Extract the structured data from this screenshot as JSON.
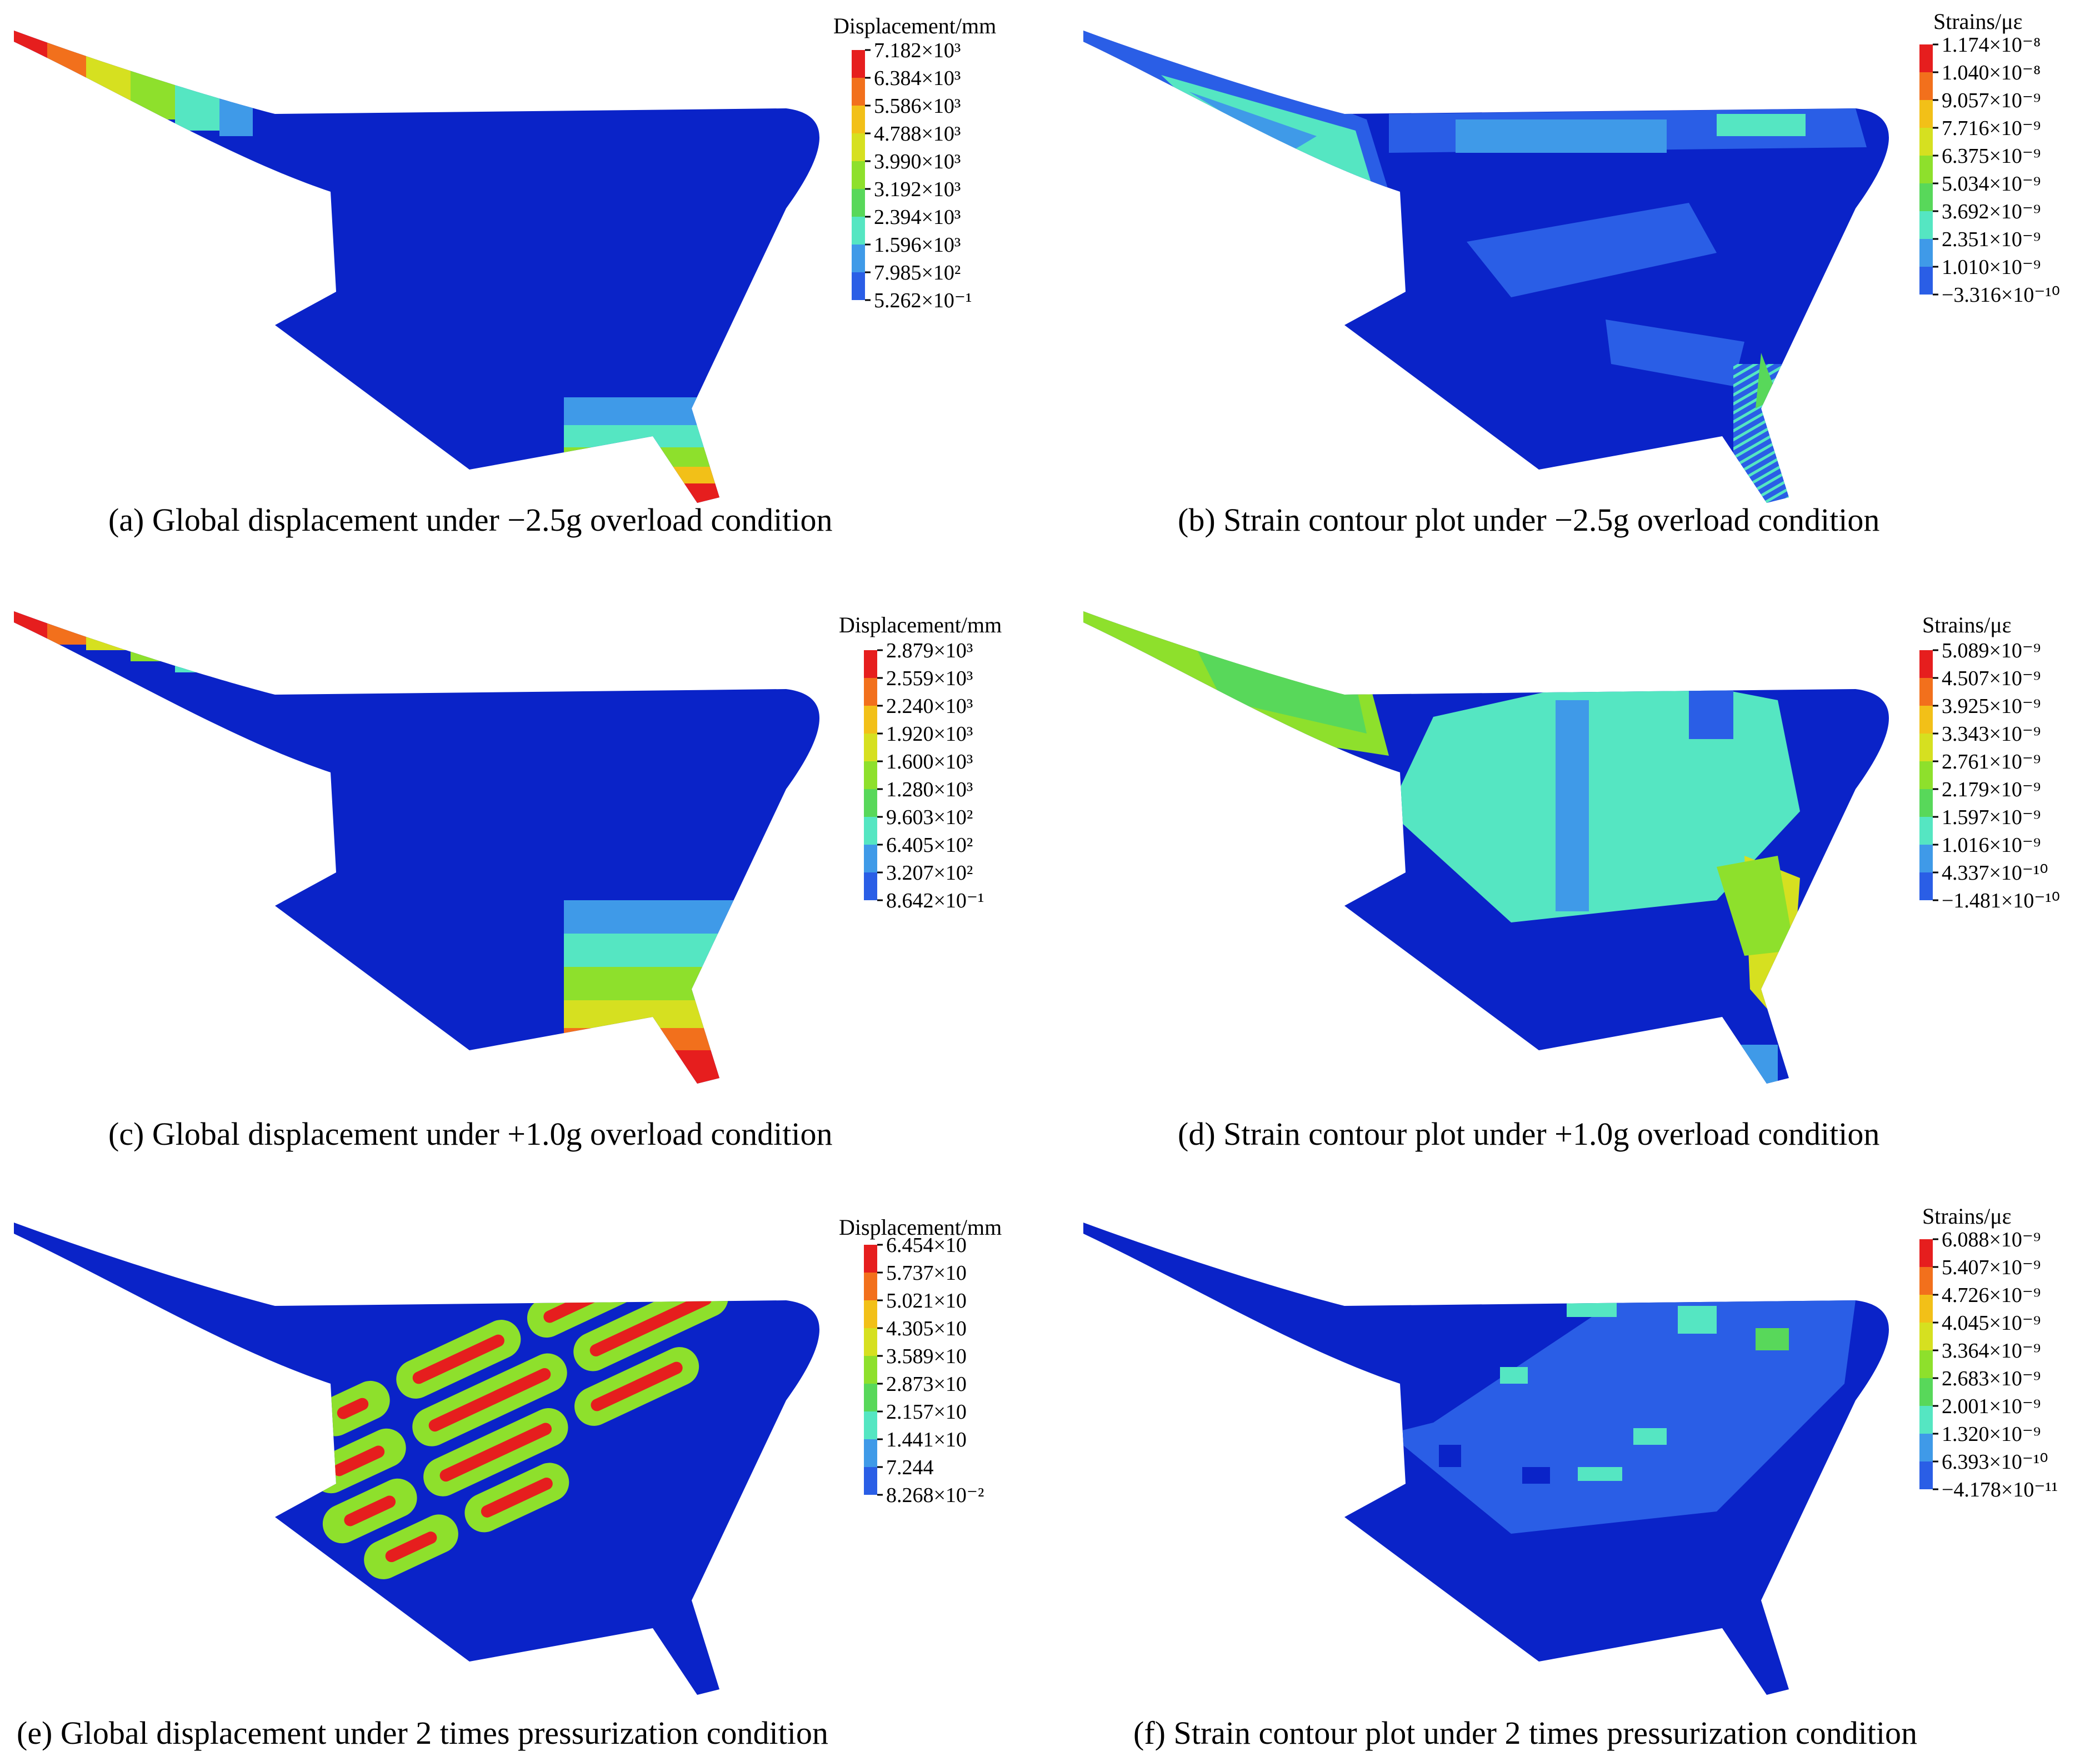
{
  "colormap": [
    "#0a23c8",
    "#2a5ee6",
    "#3f9ae8",
    "#55e6c2",
    "#58d85a",
    "#8ee02c",
    "#d6e020",
    "#f2c018",
    "#f2701c",
    "#e61e1e"
  ],
  "panels": [
    {
      "id": "a",
      "caption": "(a) Global displacement under −2.5g overload condition",
      "legend_title": "Displacement/mm",
      "legend_labels": [
        "7.182×10³",
        "6.384×10³",
        "5.586×10³",
        "4.788×10³",
        "3.990×10³",
        "3.192×10³",
        "2.394×10³",
        "1.596×10³",
        "7.985×10²",
        "5.262×10⁻¹"
      ]
    },
    {
      "id": "b",
      "caption": "(b) Strain contour plot under −2.5g overload condition",
      "legend_title": "Strains/με",
      "legend_labels": [
        "1.174×10⁻⁸",
        "1.040×10⁻⁸",
        "9.057×10⁻⁹",
        "7.716×10⁻⁹",
        "6.375×10⁻⁹",
        "5.034×10⁻⁹",
        "3.692×10⁻⁹",
        "2.351×10⁻⁹",
        "1.010×10⁻⁹",
        "−3.316×10⁻¹⁰"
      ]
    },
    {
      "id": "c",
      "caption": "(c) Global displacement under +1.0g overload condition",
      "legend_title": "Displacement/mm",
      "legend_labels": [
        "2.879×10³",
        "2.559×10³",
        "2.240×10³",
        "1.920×10³",
        "1.600×10³",
        "1.280×10³",
        "9.603×10²",
        "6.405×10²",
        "3.207×10²",
        "8.642×10⁻¹"
      ]
    },
    {
      "id": "d",
      "caption": "(d) Strain contour plot under +1.0g overload condition",
      "legend_title": "Strains/με",
      "legend_labels": [
        "5.089×10⁻⁹",
        "4.507×10⁻⁹",
        "3.925×10⁻⁹",
        "3.343×10⁻⁹",
        "2.761×10⁻⁹",
        "2.179×10⁻⁹",
        "1.597×10⁻⁹",
        "1.016×10⁻⁹",
        "4.337×10⁻¹⁰",
        "−1.481×10⁻¹⁰"
      ]
    },
    {
      "id": "e",
      "caption": "(e) Global displacement under 2 times pressurization condition",
      "legend_title": "Displacement/mm",
      "legend_labels": [
        "6.454×10",
        "5.737×10",
        "5.021×10",
        "4.305×10",
        "3.589×10",
        "2.873×10",
        "2.157×10",
        "1.441×10",
        "7.244",
        "8.268×10⁻²"
      ]
    },
    {
      "id": "f",
      "caption": "(f) Strain contour plot under 2 times pressurization condition",
      "legend_title": "Strains/με",
      "legend_labels": [
        "6.088×10⁻⁹",
        "5.407×10⁻⁹",
        "4.726×10⁻⁹",
        "4.045×10⁻⁹",
        "3.364×10⁻⁹",
        "2.683×10⁻⁹",
        "2.001×10⁻⁹",
        "1.320×10⁻⁹",
        "6.393×10⁻¹⁰",
        "−4.178×10⁻¹¹"
      ]
    }
  ]
}
